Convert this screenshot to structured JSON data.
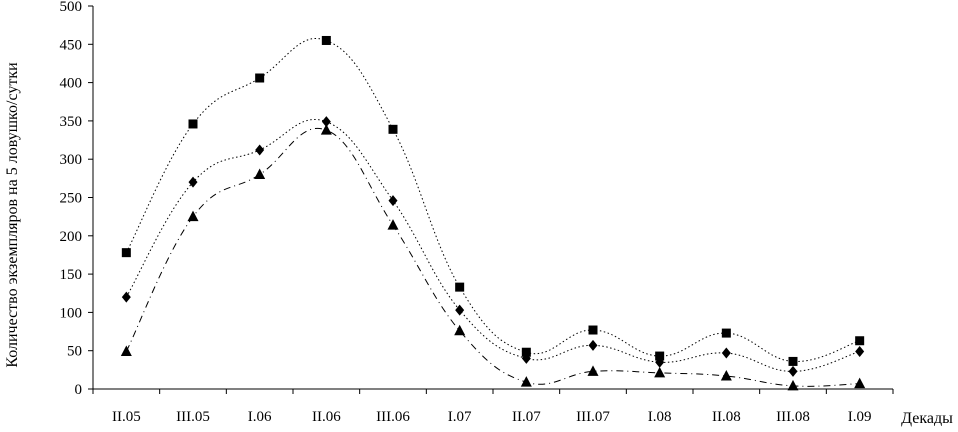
{
  "chart_data": {
    "type": "line",
    "title": "",
    "xlabel": "Декады",
    "ylabel": "Количество экземпляров на 5 ловушко/сутки",
    "categories": [
      "II.05",
      "III.05",
      "I.06",
      "II.06",
      "III.06",
      "I.07",
      "II.07",
      "III.07",
      "I.08",
      "II.08",
      "III.08",
      "I.09"
    ],
    "ylim": [
      0,
      500
    ],
    "yticks": [
      0,
      50,
      100,
      150,
      200,
      250,
      300,
      350,
      400,
      450,
      500
    ],
    "grid": false,
    "legend": "none",
    "series": [
      {
        "marker": "square",
        "dash": "dotted",
        "values": [
          178,
          346,
          406,
          455,
          339,
          133,
          48,
          77,
          43,
          73,
          36,
          63
        ]
      },
      {
        "marker": "diamond",
        "dash": "dotted",
        "values": [
          120,
          270,
          312,
          349,
          246,
          103,
          40,
          57,
          35,
          47,
          23,
          49
        ]
      },
      {
        "marker": "triangle",
        "dash": "dashed",
        "values": [
          49,
          225,
          280,
          338,
          214,
          76,
          9,
          23,
          21,
          17,
          4,
          7
        ]
      }
    ]
  }
}
